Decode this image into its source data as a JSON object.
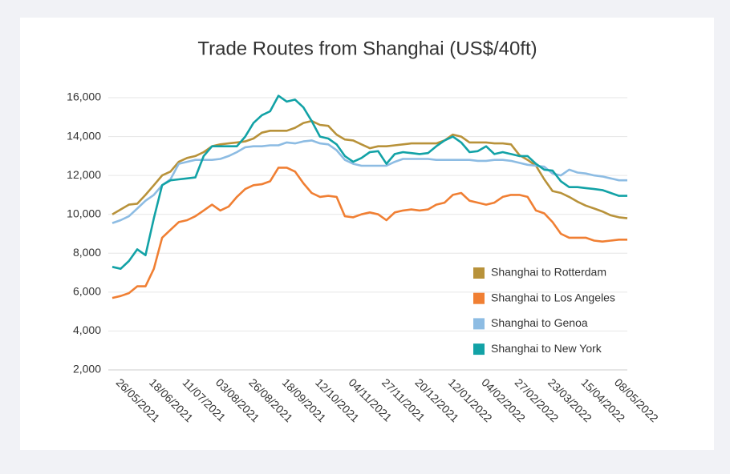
{
  "chart_data": {
    "type": "line",
    "title": "Trade Routes from Shanghai (US$/40ft)",
    "categories": [
      null,
      "26/05/2021",
      null,
      null,
      null,
      "18/06/2021",
      null,
      null,
      null,
      "11/07/2021",
      null,
      null,
      null,
      "03/08/2021",
      null,
      null,
      null,
      "26/08/2021",
      null,
      null,
      null,
      "18/09/2021",
      null,
      null,
      null,
      "12/10/2021",
      null,
      null,
      null,
      "04/11/2021",
      null,
      null,
      null,
      "27/11/2021",
      null,
      null,
      null,
      "20/12/2021",
      null,
      null,
      null,
      "12/01/2022",
      null,
      null,
      null,
      "04/02/2022",
      null,
      null,
      null,
      "27/02/2022",
      null,
      null,
      null,
      "23/03/2022",
      null,
      null,
      null,
      "15/04/2022",
      null,
      null,
      null,
      "08/05/2022",
      null
    ],
    "series": [
      {
        "name": "Shanghai to Rotterdam",
        "color": "#b8923a",
        "values": [
          10000,
          10250,
          10500,
          10550,
          11000,
          11500,
          12000,
          12200,
          12700,
          12900,
          13000,
          13200,
          13500,
          13600,
          13650,
          13700,
          13750,
          13900,
          14200,
          14300,
          14300,
          14300,
          14450,
          14700,
          14800,
          14600,
          14550,
          14100,
          13850,
          13800,
          13600,
          13400,
          13500,
          13500,
          13550,
          13600,
          13650,
          13650,
          13650,
          13650,
          13800,
          14100,
          14000,
          13700,
          13700,
          13700,
          13650,
          13650,
          13600,
          13050,
          12800,
          12500,
          11800,
          11200,
          11100,
          10900,
          10650,
          10450,
          10300,
          10150,
          9950,
          9850,
          9800
        ]
      },
      {
        "name": "Shanghai to Los Angeles",
        "color": "#f07f33",
        "values": [
          5700,
          5800,
          5950,
          6300,
          6300,
          7200,
          8800,
          9200,
          9600,
          9700,
          9900,
          10200,
          10500,
          10200,
          10400,
          10900,
          11300,
          11500,
          11550,
          11700,
          12400,
          12400,
          12200,
          11600,
          11100,
          10900,
          10950,
          10900,
          9900,
          9850,
          10000,
          10100,
          10000,
          9700,
          10100,
          10200,
          10250,
          10200,
          10250,
          10500,
          10600,
          11000,
          11100,
          10700,
          10600,
          10500,
          10600,
          10900,
          11000,
          11000,
          10900,
          10200,
          10050,
          9600,
          9000,
          8800,
          8800,
          8800,
          8650,
          8600,
          8650,
          8700,
          8700
        ]
      },
      {
        "name": "Shanghai to Genoa",
        "color": "#8dbce3",
        "values": [
          9550,
          9700,
          9900,
          10300,
          10700,
          11000,
          11500,
          11800,
          12600,
          12700,
          12800,
          12800,
          12800,
          12850,
          13000,
          13200,
          13450,
          13500,
          13500,
          13550,
          13550,
          13700,
          13650,
          13750,
          13800,
          13650,
          13600,
          13300,
          12800,
          12600,
          12500,
          12500,
          12500,
          12500,
          12700,
          12850,
          12850,
          12850,
          12850,
          12800,
          12800,
          12800,
          12800,
          12800,
          12750,
          12750,
          12800,
          12800,
          12750,
          12650,
          12550,
          12500,
          12450,
          12100,
          12000,
          12300,
          12150,
          12100,
          12000,
          11950,
          11850,
          11750,
          11750
        ]
      },
      {
        "name": "Shanghai to New York",
        "color": "#12a2a6",
        "values": [
          7300,
          7200,
          7600,
          8200,
          7900,
          9800,
          11500,
          11750,
          11800,
          11850,
          11900,
          13000,
          13500,
          13500,
          13500,
          13500,
          14000,
          14700,
          15100,
          15300,
          16100,
          15800,
          15900,
          15500,
          14800,
          14000,
          13900,
          13600,
          13000,
          12700,
          12900,
          13200,
          13250,
          12600,
          13100,
          13200,
          13150,
          13100,
          13150,
          13500,
          13800,
          14000,
          13700,
          13200,
          13250,
          13500,
          13100,
          13200,
          13100,
          13000,
          13000,
          12600,
          12300,
          12250,
          11700,
          11400,
          11400,
          11350,
          11300,
          11250,
          11100,
          10950,
          10950
        ]
      }
    ],
    "ylim": [
      2000,
      16000
    ],
    "yticks": [
      {
        "value": 2000,
        "label": "2,000"
      },
      {
        "value": 4000,
        "label": "4,000"
      },
      {
        "value": 6000,
        "label": "6,000"
      },
      {
        "value": 8000,
        "label": "8,000"
      },
      {
        "value": 10000,
        "label": "10,000"
      },
      {
        "value": 12000,
        "label": "12,000"
      },
      {
        "value": 14000,
        "label": "14,000"
      },
      {
        "value": 16000,
        "label": "16,000"
      }
    ],
    "grid": true
  }
}
